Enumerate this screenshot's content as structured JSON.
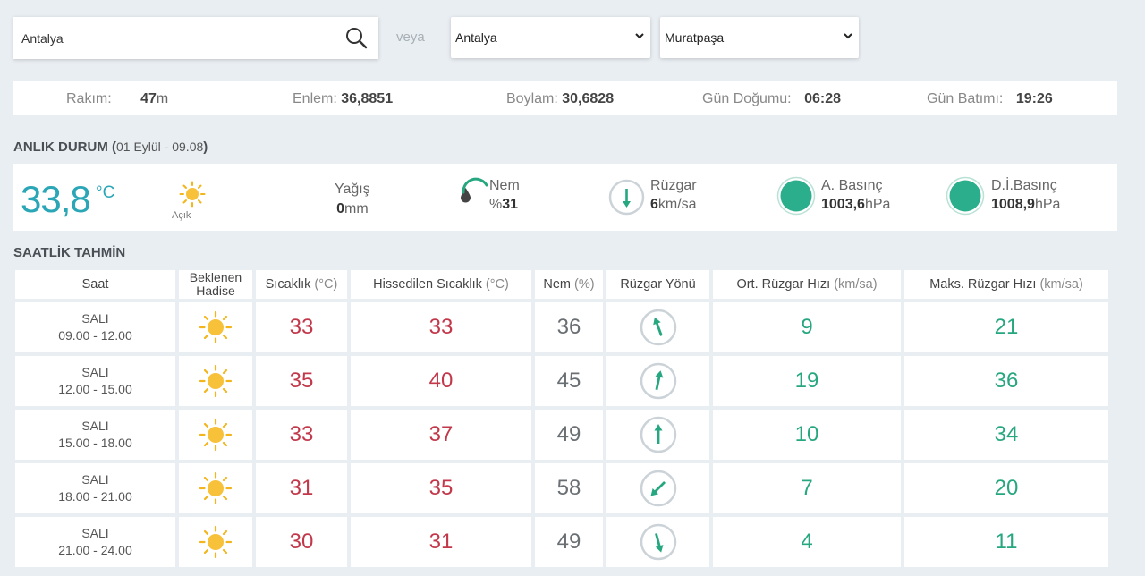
{
  "search": {
    "value": "Antalya"
  },
  "or_label": "veya",
  "province_select": {
    "value": "Antalya"
  },
  "district_select": {
    "value": "Muratpaşa"
  },
  "info": {
    "altitude_label": "Rakım:",
    "altitude_value": "47",
    "altitude_unit": "m",
    "lat_label": "Enlem:",
    "lat_value": "36,8851",
    "lon_label": "Boylam:",
    "lon_value": "30,6828",
    "sunrise_label": "Gün Doğumu:",
    "sunrise_value": "06:28",
    "sunset_label": "Gün Batımı:",
    "sunset_value": "19:26"
  },
  "current": {
    "title": "ANLIK DURUM (",
    "subtitle": "01 Eylül - 09.08",
    "title_close": ")",
    "temperature": "33,8",
    "temp_unit": "°C",
    "condition": "Açık",
    "condition_icon": "sun-icon",
    "rain_label": "Yağış",
    "rain_value": "0",
    "rain_unit": "mm",
    "humidity_label": "Nem",
    "humidity_prefix": "%",
    "humidity_value": "31",
    "wind_label": "Rüzgar",
    "wind_value": "6",
    "wind_unit": "km/sa",
    "pressure_label": "A. Basınç",
    "pressure_value": "1003,6",
    "pressure_unit": "hPa",
    "sea_pressure_label": "D.İ.Basınç",
    "sea_pressure_value": "1008,9",
    "sea_pressure_unit": "hPa",
    "colors": {
      "temp": "#2aa6b6",
      "accent": "#27a780"
    }
  },
  "forecast": {
    "title": "SAATLİK TAHMİN",
    "headers": {
      "time": "Saat",
      "event": "Beklenen Hadise",
      "temp": "Sıcaklık",
      "temp_unit": "(°C)",
      "feels": "Hissedilen Sıcaklık",
      "feels_unit": "(°C)",
      "humidity": "Nem",
      "humidity_unit": "(%)",
      "wind_dir": "Rüzgar Yönü",
      "avg_wind": "Ort. Rüzgar Hızı",
      "avg_wind_unit": "(km/sa)",
      "max_wind": "Maks. Rüzgar Hızı",
      "max_wind_unit": "(km/sa)"
    },
    "rows": [
      {
        "day": "SALI",
        "range": "09.00 - 12.00",
        "icon": "sun-icon",
        "temp": "33",
        "feels": "33",
        "humidity": "36",
        "wind_dir_deg": 340,
        "avg_wind": "9",
        "max_wind": "21"
      },
      {
        "day": "SALI",
        "range": "12.00 - 15.00",
        "icon": "sun-icon",
        "temp": "35",
        "feels": "40",
        "humidity": "45",
        "wind_dir_deg": 12,
        "avg_wind": "19",
        "max_wind": "36"
      },
      {
        "day": "SALI",
        "range": "15.00 - 18.00",
        "icon": "sun-icon",
        "temp": "33",
        "feels": "37",
        "humidity": "49",
        "wind_dir_deg": 0,
        "avg_wind": "10",
        "max_wind": "34"
      },
      {
        "day": "SALI",
        "range": "18.00 - 21.00",
        "icon": "sun-icon",
        "temp": "31",
        "feels": "35",
        "humidity": "58",
        "wind_dir_deg": 225,
        "avg_wind": "7",
        "max_wind": "20"
      },
      {
        "day": "SALI",
        "range": "21.00 - 24.00",
        "icon": "sun-icon",
        "temp": "30",
        "feels": "31",
        "humidity": "49",
        "wind_dir_deg": 165,
        "avg_wind": "4",
        "max_wind": "11"
      }
    ]
  }
}
